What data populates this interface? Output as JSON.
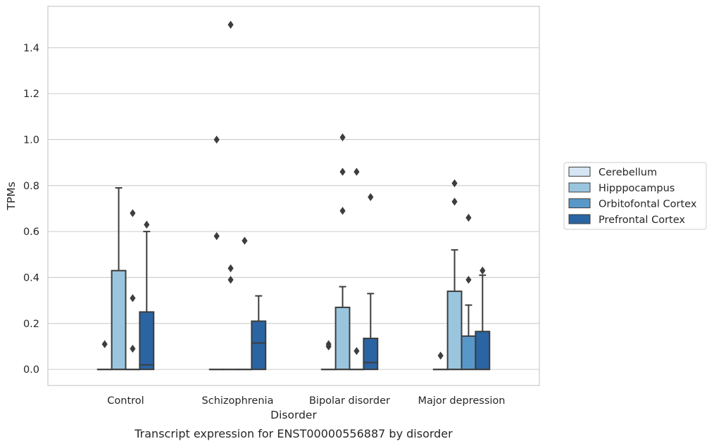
{
  "chart_data": {
    "type": "box",
    "caption": "Transcript expression for ENST00000556887 by disorder",
    "xlabel": "Disorder",
    "ylabel": "TPMs",
    "ylim": [
      -0.07,
      1.58
    ],
    "yticks": [
      0.0,
      0.2,
      0.4,
      0.6,
      0.8,
      1.0,
      1.2,
      1.4
    ],
    "ytick_labels": [
      "0.0",
      "0.2",
      "0.4",
      "0.6",
      "0.8",
      "1.0",
      "1.2",
      "1.4"
    ],
    "grid": "horizontal",
    "legend_position": "right",
    "categories": [
      "Control",
      "Schizophrenia",
      "Bipolar disorder",
      "Major depression"
    ],
    "series": [
      {
        "name": "Cerebellum",
        "color": "#d6e5f3",
        "boxes": [
          {
            "q1": 0.0,
            "median": 0.0,
            "q3": 0.0,
            "whisker_low": 0.0,
            "whisker_high": 0.0,
            "outliers": [
              0.11
            ]
          },
          {
            "q1": 0.0,
            "median": 0.0,
            "q3": 0.0,
            "whisker_low": 0.0,
            "whisker_high": 0.0,
            "outliers": [
              0.58,
              1.0
            ]
          },
          {
            "q1": 0.0,
            "median": 0.0,
            "q3": 0.0,
            "whisker_low": 0.0,
            "whisker_high": 0.0,
            "outliers": [
              0.1,
              0.11
            ]
          },
          {
            "q1": 0.0,
            "median": 0.0,
            "q3": 0.0,
            "whisker_low": 0.0,
            "whisker_high": 0.0,
            "outliers": [
              0.06
            ]
          }
        ]
      },
      {
        "name": "Hipppocampus",
        "color": "#9ac5df",
        "boxes": [
          {
            "q1": 0.0,
            "median": 0.0,
            "q3": 0.43,
            "whisker_low": 0.0,
            "whisker_high": 0.79,
            "outliers": []
          },
          {
            "q1": 0.0,
            "median": 0.0,
            "q3": 0.0,
            "whisker_low": 0.0,
            "whisker_high": 0.0,
            "outliers": [
              0.39,
              0.44,
              1.5
            ]
          },
          {
            "q1": 0.0,
            "median": 0.0,
            "q3": 0.27,
            "whisker_low": 0.0,
            "whisker_high": 0.36,
            "outliers": [
              0.69,
              0.86,
              1.01
            ]
          },
          {
            "q1": 0.0,
            "median": 0.0,
            "q3": 0.34,
            "whisker_low": 0.0,
            "whisker_high": 0.52,
            "outliers": [
              0.73,
              0.81
            ]
          }
        ]
      },
      {
        "name": "Orbitofontal Cortex",
        "color": "#5898c8",
        "boxes": [
          {
            "q1": 0.0,
            "median": 0.0,
            "q3": 0.0,
            "whisker_low": 0.0,
            "whisker_high": 0.0,
            "outliers": [
              0.09,
              0.31,
              0.68
            ]
          },
          {
            "q1": 0.0,
            "median": 0.0,
            "q3": 0.0,
            "whisker_low": 0.0,
            "whisker_high": 0.0,
            "outliers": [
              0.56
            ]
          },
          {
            "q1": 0.0,
            "median": 0.0,
            "q3": 0.0,
            "whisker_low": 0.0,
            "whisker_high": 0.0,
            "outliers": [
              0.08,
              0.86
            ]
          },
          {
            "q1": 0.0,
            "median": 0.0,
            "q3": 0.145,
            "whisker_low": 0.0,
            "whisker_high": 0.28,
            "outliers": [
              0.39,
              0.66
            ]
          }
        ]
      },
      {
        "name": "Prefrontal Cortex",
        "color": "#2a64a3",
        "boxes": [
          {
            "q1": 0.0,
            "median": 0.02,
            "q3": 0.25,
            "whisker_low": 0.0,
            "whisker_high": 0.6,
            "outliers": [
              0.63
            ]
          },
          {
            "q1": 0.0,
            "median": 0.115,
            "q3": 0.21,
            "whisker_low": 0.0,
            "whisker_high": 0.32,
            "outliers": []
          },
          {
            "q1": 0.0,
            "median": 0.03,
            "q3": 0.135,
            "whisker_low": 0.0,
            "whisker_high": 0.33,
            "outliers": [
              0.75
            ]
          },
          {
            "q1": 0.0,
            "median": 0.0,
            "q3": 0.165,
            "whisker_low": 0.0,
            "whisker_high": 0.41,
            "outliers": [
              0.43
            ]
          }
        ]
      }
    ]
  }
}
